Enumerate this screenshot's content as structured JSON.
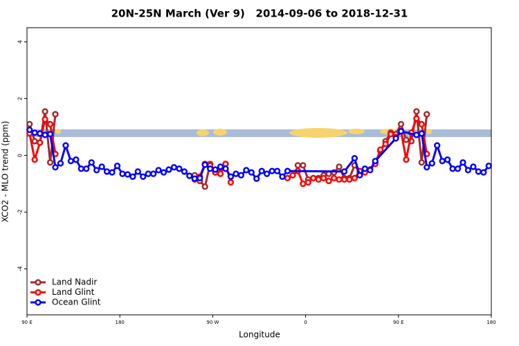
{
  "chart_data": {
    "type": "line",
    "title": "20N-25N March (Ver 9)   2014-09-06 to 2018-12-31",
    "x_label": "Longitude",
    "y_label": "XCO2 - MLO trend (ppm)",
    "xlim": [
      90,
      540
    ],
    "ylim": [
      -5.62,
      4.5
    ],
    "xticks": [
      {
        "value": 90,
        "label": "90 E"
      },
      180,
      {
        "value": 270,
        "label": "90 W"
      },
      {
        "value": 360,
        "label": "0"
      },
      {
        "value": 450,
        "label": "90 E"
      },
      {
        "value": 540,
        "label": "180"
      }
    ],
    "yticks": [
      -4,
      -2,
      0,
      2,
      4
    ],
    "legend": "bottom-left",
    "series": [
      {
        "name": "Land Nadir",
        "color": "#a52a2a",
        "x": [
          92.5,
          97.5,
          102.5,
          107.5,
          112.5,
          117.5,
          180,
          252.5,
          257.5,
          262.5,
          267.5,
          272.5,
          277.5,
          282.5,
          310,
          352.5,
          357.5,
          362.5,
          367.5,
          372.5,
          377.5,
          382.5,
          387.5,
          392.5,
          397.5,
          402.5,
          407.5,
          412.5,
          417.5,
          422.5,
          427.5,
          432.5,
          437.5,
          442.5,
          447.5,
          452.5,
          457.5,
          462.5,
          467.5,
          472.5,
          477.5
        ],
        "values": [
          1.1,
          0.5,
          0.45,
          1.55,
          -0.25,
          1.45,
          null,
          -0.7,
          -0.9,
          -1.1,
          -0.3,
          -0.6,
          -0.45,
          -0.3,
          null,
          -0.35,
          -0.35,
          -0.85,
          -0.8,
          -0.8,
          -0.7,
          -0.65,
          -0.6,
          -0.4,
          -0.8,
          -0.8,
          -0.35,
          -0.6,
          -0.55,
          -0.5,
          -0.25,
          0.15,
          0.5,
          0.8,
          0.75,
          1.1,
          0.55,
          0.5,
          1.55,
          -0.25,
          1.45
        ]
      },
      {
        "name": "Land Glint",
        "color": "#ff0000",
        "x": [
          92.5,
          97.5,
          102.5,
          107.5,
          112.5,
          117.5,
          180,
          252.5,
          257.5,
          262.5,
          267.5,
          272.5,
          277.5,
          282.5,
          287.5,
          315,
          342.5,
          347.5,
          352.5,
          357.5,
          362.5,
          367.5,
          372.5,
          377.5,
          382.5,
          387.5,
          392.5,
          397.5,
          402.5,
          407.5,
          412.5,
          417.5,
          422.5,
          427.5,
          432.5,
          437.5,
          442.5,
          447.5,
          452.5,
          457.5,
          462.5,
          467.5,
          472.5,
          477.5
        ],
        "values": [
          0.78,
          -0.15,
          0.45,
          1.27,
          1.1,
          0.05,
          null,
          -0.85,
          -0.75,
          -0.3,
          -0.35,
          -0.6,
          -0.65,
          -0.3,
          -0.95,
          null,
          -0.8,
          -0.7,
          -0.55,
          -1.0,
          -0.95,
          -0.8,
          -0.85,
          -0.8,
          -0.9,
          -0.8,
          -0.85,
          -0.85,
          -0.85,
          -0.8,
          -0.55,
          -0.6,
          -0.5,
          -0.3,
          0.2,
          0.4,
          0.75,
          0.65,
          0.85,
          -0.15,
          0.8,
          1.3,
          1.1,
          0.05
        ]
      },
      {
        "name": "Ocean Glint",
        "color": "#0000ff",
        "x": [
          92.5,
          97.5,
          102.5,
          107.5,
          112.5,
          117.5,
          122.5,
          127.5,
          132.5,
          137.5,
          142.5,
          147.5,
          152.5,
          157.5,
          162.5,
          167.5,
          172.5,
          177.5,
          182.5,
          187.5,
          192.5,
          197.5,
          202.5,
          207.5,
          212.5,
          217.5,
          222.5,
          227.5,
          232.5,
          237.5,
          242.5,
          247.5,
          252.5,
          257.5,
          262.5,
          267.5,
          272.5,
          277.5,
          282.5,
          287.5,
          292.5,
          297.5,
          302.5,
          307.5,
          312.5,
          317.5,
          322.5,
          327.5,
          332.5,
          337.5,
          342.5,
          397.5,
          407.5,
          412.5,
          417.5,
          422.5,
          427.5,
          447.5,
          452.5,
          467.5,
          472.5,
          477.5,
          482.5,
          487.5,
          492.5,
          497.5,
          502.5,
          507.5,
          512.5,
          517.5,
          522.5,
          527.5,
          532.5,
          537.5
        ],
        "values": [
          0.9,
          0.8,
          0.77,
          0.72,
          0.75,
          -0.42,
          -0.28,
          0.35,
          -0.2,
          -0.15,
          -0.47,
          -0.47,
          -0.25,
          -0.52,
          -0.4,
          -0.57,
          -0.6,
          -0.37,
          -0.65,
          -0.67,
          -0.75,
          -0.57,
          -0.75,
          -0.65,
          -0.65,
          -0.52,
          -0.6,
          -0.5,
          -0.42,
          -0.47,
          -0.57,
          -0.72,
          -0.82,
          -0.8,
          -0.33,
          -0.47,
          -0.5,
          -0.4,
          -0.47,
          -0.75,
          -0.65,
          -0.7,
          -0.52,
          -0.6,
          -0.82,
          -0.55,
          -0.65,
          -0.55,
          -0.55,
          -0.75,
          -0.55,
          -0.57,
          -0.1,
          -0.7,
          -0.47,
          -0.52,
          -0.2,
          0.6,
          0.85,
          0.72,
          0.77,
          -0.42,
          -0.28,
          0.35,
          -0.2,
          -0.15,
          -0.47,
          -0.47,
          -0.25,
          -0.52,
          -0.4,
          -0.57,
          -0.6,
          -0.37
        ]
      }
    ]
  }
}
